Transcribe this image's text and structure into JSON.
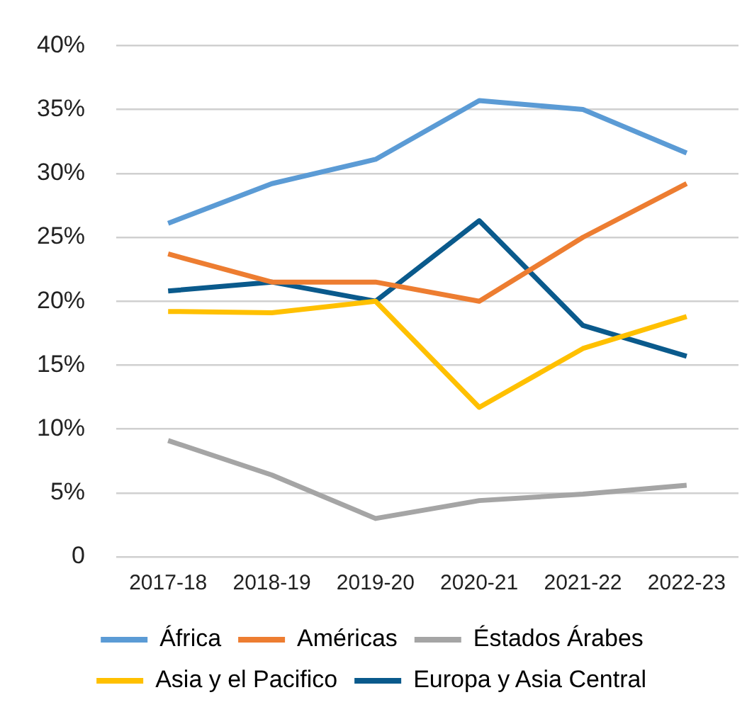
{
  "chart_data": {
    "type": "line",
    "categories": [
      "2017-18",
      "2018-19",
      "2019-20",
      "2020-21",
      "2021-22",
      "2022-23"
    ],
    "series": [
      {
        "name": "África",
        "color": "#5b9bd5",
        "values": [
          26.1,
          29.2,
          31.1,
          35.7,
          35.0,
          31.6
        ]
      },
      {
        "name": "Américas",
        "color": "#ed7d31",
        "values": [
          23.7,
          21.5,
          21.5,
          20.0,
          25.0,
          29.2
        ]
      },
      {
        "name": "Éstados Árabes",
        "color": "#a5a5a5",
        "values": [
          9.1,
          6.4,
          3.0,
          4.4,
          4.9,
          5.6
        ]
      },
      {
        "name": "Asia y el Pacifico",
        "color": "#ffc000",
        "values": [
          19.2,
          19.1,
          20.0,
          11.7,
          16.3,
          18.8
        ]
      },
      {
        "name": "Europa y Asia Central",
        "color": "#0a5a8c",
        "values": [
          20.8,
          21.5,
          20.0,
          26.3,
          18.1,
          15.7
        ]
      }
    ],
    "ylim": [
      0,
      40
    ],
    "yticks": [
      {
        "value": 0,
        "label": "0"
      },
      {
        "value": 5,
        "label": "5%"
      },
      {
        "value": 10,
        "label": "10%"
      },
      {
        "value": 15,
        "label": "15%"
      },
      {
        "value": 20,
        "label": "20%"
      },
      {
        "value": 25,
        "label": "25%"
      },
      {
        "value": 30,
        "label": "30%"
      },
      {
        "value": 35,
        "label": "35%"
      },
      {
        "value": 40,
        "label": "40%"
      }
    ],
    "grid": "y",
    "legend": "bottom",
    "marker": "none",
    "line_style": "solid"
  }
}
